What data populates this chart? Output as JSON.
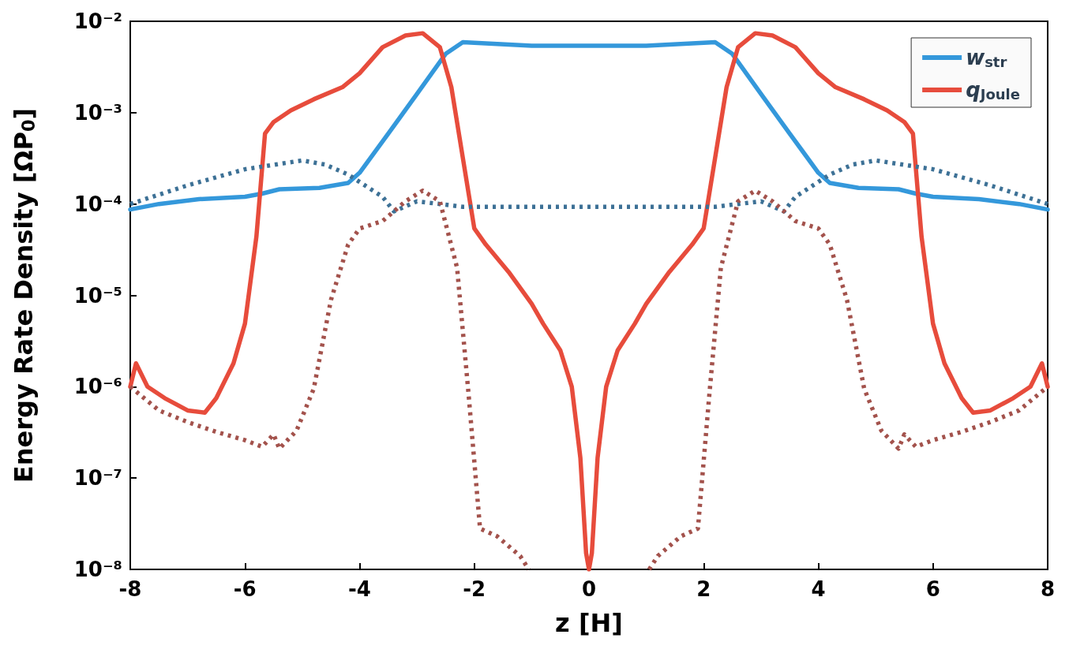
{
  "chart_data": {
    "type": "line",
    "xlabel": "z [H]",
    "ylabel": "Energy Rate Density [ΩP$_{0}$]",
    "log": "y",
    "grid": false,
    "legend": "top right",
    "marker": "none",
    "line_style": "solid",
    "xlim": [
      -8,
      8
    ],
    "xticks": [
      -8,
      -6,
      -4,
      -2,
      0,
      2,
      4,
      6,
      8
    ],
    "ylim": [
      1e-08,
      0.01
    ],
    "yticks": [
      {
        "value": 1e-08,
        "label": "10⁻⁸"
      },
      {
        "value": 1e-07,
        "label": "10⁻⁷"
      },
      {
        "value": 1e-06,
        "label": "10⁻⁶"
      },
      {
        "value": 1e-05,
        "label": "10⁻⁵"
      },
      {
        "value": 0.0001,
        "label": "10⁻⁴"
      },
      {
        "value": 0.001,
        "label": "10⁻³"
      },
      {
        "value": 0.01,
        "label": "10⁻²"
      }
    ],
    "series": [
      {
        "name": "w$_{str}$",
        "color": "#3498db",
        "x": [
          -8,
          -7.5,
          -6.8,
          -6,
          -5.7,
          -5.4,
          -4.7,
          -4.2,
          -4,
          -3.5,
          -3,
          -2.5,
          -2.2,
          -1,
          0,
          1,
          2.2,
          2.5,
          3,
          3.5,
          4,
          4.2,
          4.7,
          5.4,
          5.7,
          6,
          6.8,
          7.5,
          8
        ],
        "values": [
          8.7e-05,
          0.0001,
          0.000113,
          0.00012,
          0.00013,
          0.000145,
          0.00015,
          0.00017,
          0.00022,
          0.00059,
          0.0016,
          0.0044,
          0.0059,
          0.0054,
          0.0054,
          0.0054,
          0.0059,
          0.0044,
          0.0016,
          0.00059,
          0.00022,
          0.00017,
          0.00015,
          0.000145,
          0.00013,
          0.00012,
          0.000113,
          0.0001,
          8.7e-05
        ]
      },
      {
        "name": "q$_{Joule}$",
        "color": "#e74c3c",
        "x": [
          -8,
          -7.9,
          -7.7,
          -7.4,
          -7,
          -6.7,
          -6.5,
          -6.2,
          -6,
          -5.8,
          -5.65,
          -5.5,
          -5.2,
          -4.8,
          -4.3,
          -4,
          -3.6,
          -3.2,
          -2.9,
          -2.6,
          -2.4,
          -2.2,
          -2,
          -1.8,
          -1.4,
          -1,
          -0.8,
          -0.5,
          -0.3,
          -0.15,
          -0.05,
          0,
          0.05,
          0.15,
          0.3,
          0.5,
          0.8,
          1,
          1.4,
          1.8,
          2,
          2.2,
          2.4,
          2.6,
          2.9,
          3.2,
          3.6,
          4,
          4.3,
          4.8,
          5.2,
          5.5,
          5.65,
          5.8,
          6,
          6.2,
          6.5,
          6.7,
          7,
          7.4,
          7.7,
          7.9,
          8
        ],
        "values": [
          1e-06,
          1.8e-06,
          1e-06,
          7.5e-07,
          5.5e-07,
          5.2e-07,
          7.5e-07,
          1.8e-06,
          4.9e-06,
          4.4e-05,
          0.00059,
          0.00079,
          0.00106,
          0.0014,
          0.0019,
          0.0027,
          0.0052,
          0.007,
          0.0074,
          0.0052,
          0.0019,
          0.00032,
          5.4e-05,
          3.6e-05,
          1.8e-05,
          8.1e-06,
          4.9e-06,
          2.5e-06,
          1e-06,
          1.66e-07,
          1.5e-08,
          1e-08,
          1.5e-08,
          1.66e-07,
          1e-06,
          2.5e-06,
          4.9e-06,
          8.1e-06,
          1.8e-05,
          3.6e-05,
          5.4e-05,
          0.00032,
          0.0019,
          0.0052,
          0.0074,
          0.007,
          0.0052,
          0.0027,
          0.0019,
          0.0014,
          0.00106,
          0.00079,
          0.00059,
          4.4e-05,
          4.9e-06,
          1.8e-06,
          7.5e-07,
          5.2e-07,
          5.5e-07,
          7.5e-07,
          1e-06,
          1.8e-06,
          1e-06
        ]
      },
      {
        "color": "#3d7196",
        "line_style": "dotted",
        "x": [
          -8,
          -7,
          -6,
          -5,
          -4.6,
          -4.2,
          -3.6,
          -3.4,
          -3,
          -2.6,
          -2.2,
          0,
          2.2,
          2.6,
          3,
          3.4,
          3.6,
          4.2,
          4.6,
          5,
          6,
          7,
          8
        ],
        "values": [
          0.0001,
          0.00016,
          0.00024,
          0.0003,
          0.00027,
          0.00021,
          0.00012,
          8.3e-05,
          0.000107,
          0.0001,
          9.3e-05,
          9.3e-05,
          9.3e-05,
          0.0001,
          0.000107,
          8.3e-05,
          0.00012,
          0.00021,
          0.00027,
          0.0003,
          0.00024,
          0.00016,
          0.0001
        ]
      },
      {
        "color": "#a3524c",
        "line_style": "dotted",
        "x": [
          -8,
          -7.5,
          -7,
          -6.5,
          -6,
          -5.7,
          -5.5,
          -5.4,
          -5.1,
          -4.8,
          -4.5,
          -4.2,
          -4,
          -3.6,
          -3.2,
          -2.9,
          -2.6,
          -2.3,
          -2.1,
          -1.9,
          -1.6,
          -1.2,
          -1.05,
          0,
          1.05,
          1.2,
          1.6,
          1.9,
          2.1,
          2.3,
          2.6,
          2.9,
          3.2,
          3.6,
          4,
          4.2,
          4.5,
          4.8,
          5.1,
          5.4,
          5.5,
          5.7,
          6,
          6.5,
          7,
          7.5,
          8
        ],
        "values": [
          1e-06,
          5.5e-07,
          4.1e-07,
          3.2e-07,
          2.6e-07,
          2.2e-07,
          3e-07,
          2.1e-07,
          3.3e-07,
          9.5e-07,
          8.9e-06,
          3.6e-05,
          5.4e-05,
          6.5e-05,
          0.000107,
          0.00014,
          0.000107,
          2e-05,
          8.3e-07,
          2.8e-08,
          2.3e-08,
          1.4e-08,
          1e-08,
          null,
          1e-08,
          1.4e-08,
          2.3e-08,
          2.8e-08,
          8.3e-07,
          2e-05,
          0.000107,
          0.00014,
          0.000107,
          6.5e-05,
          5.4e-05,
          3.6e-05,
          8.9e-06,
          9.5e-07,
          3.3e-07,
          2.1e-07,
          3e-07,
          2.2e-07,
          2.6e-07,
          3.2e-07,
          4.1e-07,
          5.5e-07,
          1e-06
        ]
      }
    ]
  }
}
